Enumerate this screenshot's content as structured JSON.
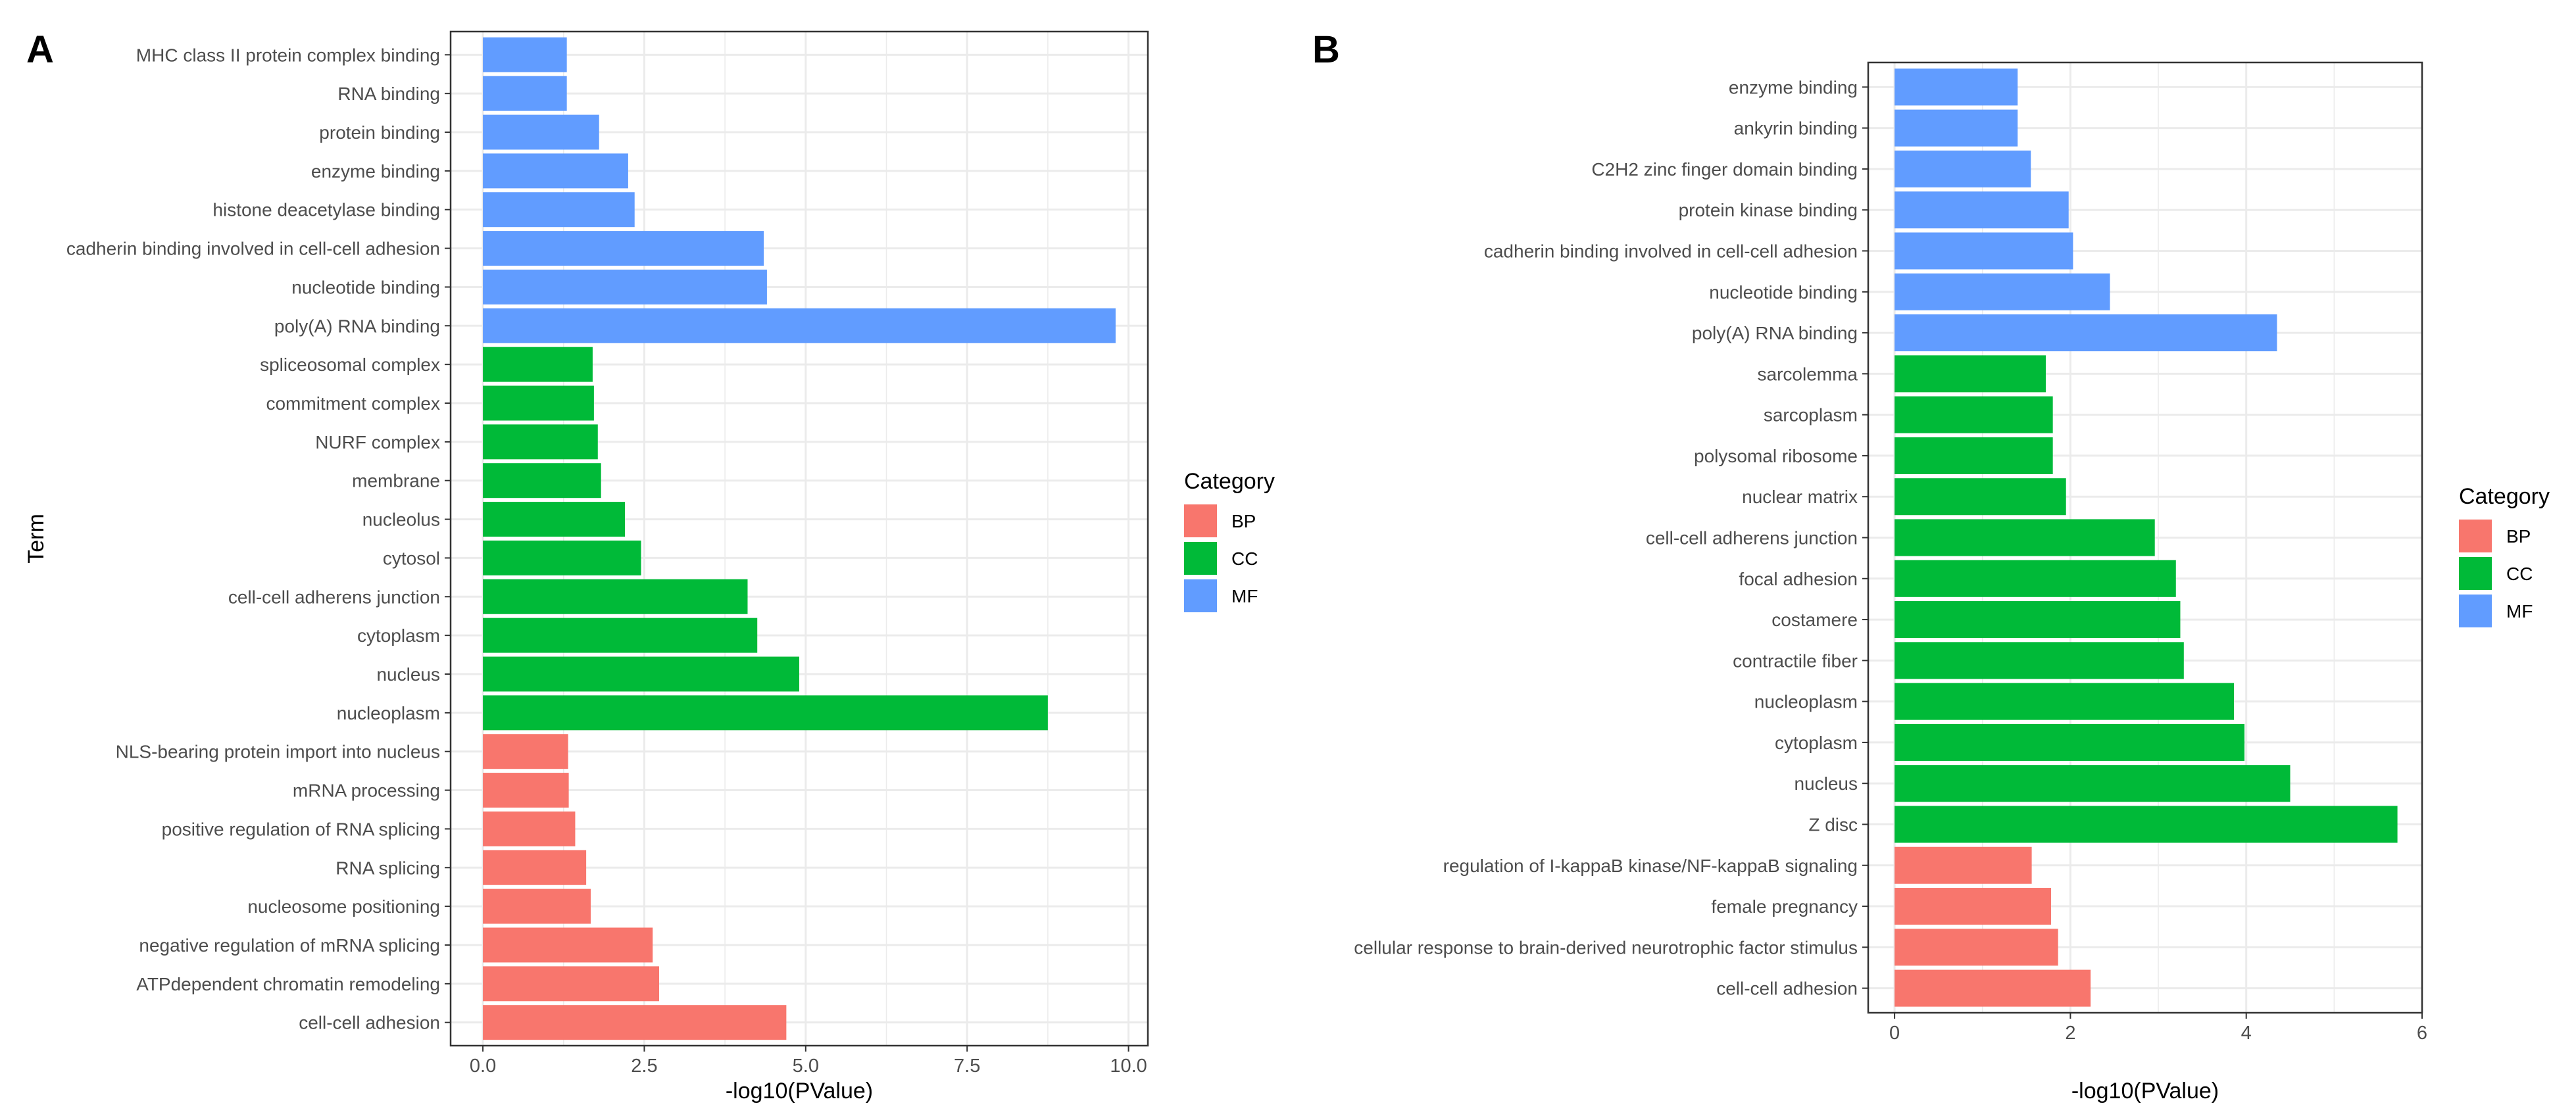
{
  "chart_data": [
    {
      "panel": "A",
      "type": "bar",
      "orientation": "horizontal",
      "xlabel": "-log10(PValue)",
      "ylabel": "Term",
      "xlim": [
        -0.5,
        10.3
      ],
      "xticks": [
        0,
        2.5,
        5,
        7.5,
        10
      ],
      "xtick_labels": [
        "0.0",
        "2.5",
        "5.0",
        "7.5",
        "10.0"
      ],
      "grid": true,
      "legend": {
        "title": "Category",
        "position": "right",
        "entries": [
          "BP",
          "CC",
          "MF"
        ]
      },
      "bars": [
        {
          "term": "MHC class II protein complex binding",
          "value": 1.3,
          "category": "MF"
        },
        {
          "term": "RNA binding",
          "value": 1.3,
          "category": "MF"
        },
        {
          "term": "protein binding",
          "value": 1.8,
          "category": "MF"
        },
        {
          "term": "enzyme binding",
          "value": 2.25,
          "category": "MF"
        },
        {
          "term": "histone deacetylase binding",
          "value": 2.35,
          "category": "MF"
        },
        {
          "term": "cadherin binding involved in cell-cell adhesion",
          "value": 4.35,
          "category": "MF"
        },
        {
          "term": "nucleotide binding",
          "value": 4.4,
          "category": "MF"
        },
        {
          "term": "poly(A) RNA binding",
          "value": 9.8,
          "category": "MF"
        },
        {
          "term": "spliceosomal complex",
          "value": 1.7,
          "category": "CC"
        },
        {
          "term": "commitment complex",
          "value": 1.72,
          "category": "CC"
        },
        {
          "term": "NURF complex",
          "value": 1.78,
          "category": "CC"
        },
        {
          "term": "membrane",
          "value": 1.83,
          "category": "CC"
        },
        {
          "term": "nucleolus",
          "value": 2.2,
          "category": "CC"
        },
        {
          "term": "cytosol",
          "value": 2.45,
          "category": "CC"
        },
        {
          "term": "cell-cell adherens junction",
          "value": 4.1,
          "category": "CC"
        },
        {
          "term": "cytoplasm",
          "value": 4.25,
          "category": "CC"
        },
        {
          "term": "nucleus",
          "value": 4.9,
          "category": "CC"
        },
        {
          "term": "nucleoplasm",
          "value": 8.75,
          "category": "CC"
        },
        {
          "term": "NLS-bearing protein import into nucleus",
          "value": 1.32,
          "category": "BP"
        },
        {
          "term": "mRNA processing",
          "value": 1.33,
          "category": "BP"
        },
        {
          "term": "positive regulation of RNA splicing",
          "value": 1.43,
          "category": "BP"
        },
        {
          "term": "RNA splicing",
          "value": 1.6,
          "category": "BP"
        },
        {
          "term": "nucleosome positioning",
          "value": 1.67,
          "category": "BP"
        },
        {
          "term": "negative regulation of mRNA splicing",
          "value": 2.63,
          "category": "BP"
        },
        {
          "term": "ATPdependent chromatin remodeling",
          "value": 2.73,
          "category": "BP"
        },
        {
          "term": "cell-cell adhesion",
          "value": 4.7,
          "category": "BP"
        }
      ]
    },
    {
      "panel": "B",
      "type": "bar",
      "orientation": "horizontal",
      "xlabel": "-log10(PValue)",
      "ylabel": "",
      "xlim": [
        -0.3,
        6.0
      ],
      "xticks": [
        0,
        2,
        4,
        6
      ],
      "xtick_labels": [
        "0",
        "2",
        "4",
        "6"
      ],
      "grid": true,
      "legend": {
        "title": "Category",
        "position": "right",
        "entries": [
          "BP",
          "CC",
          "MF"
        ]
      },
      "bars": [
        {
          "term": "enzyme binding",
          "value": 1.4,
          "category": "MF"
        },
        {
          "term": "ankyrin binding",
          "value": 1.4,
          "category": "MF"
        },
        {
          "term": "C2H2 zinc finger domain binding",
          "value": 1.55,
          "category": "MF"
        },
        {
          "term": "protein kinase binding",
          "value": 1.98,
          "category": "MF"
        },
        {
          "term": "cadherin binding involved in cell-cell adhesion",
          "value": 2.03,
          "category": "MF"
        },
        {
          "term": "nucleotide binding",
          "value": 2.45,
          "category": "MF"
        },
        {
          "term": "poly(A) RNA binding",
          "value": 4.35,
          "category": "MF"
        },
        {
          "term": "sarcolemma",
          "value": 1.72,
          "category": "CC"
        },
        {
          "term": "sarcoplasm",
          "value": 1.8,
          "category": "CC"
        },
        {
          "term": "polysomal ribosome",
          "value": 1.8,
          "category": "CC"
        },
        {
          "term": "nuclear matrix",
          "value": 1.95,
          "category": "CC"
        },
        {
          "term": "cell-cell adherens junction",
          "value": 2.96,
          "category": "CC"
        },
        {
          "term": "focal adhesion",
          "value": 3.2,
          "category": "CC"
        },
        {
          "term": "costamere",
          "value": 3.25,
          "category": "CC"
        },
        {
          "term": "contractile fiber",
          "value": 3.29,
          "category": "CC"
        },
        {
          "term": "nucleoplasm",
          "value": 3.86,
          "category": "CC"
        },
        {
          "term": "cytoplasm",
          "value": 3.98,
          "category": "CC"
        },
        {
          "term": "nucleus",
          "value": 4.5,
          "category": "CC"
        },
        {
          "term": "Z disc",
          "value": 5.72,
          "category": "CC"
        },
        {
          "term": "regulation of I-kappaB kinase/NF-kappaB signaling",
          "value": 1.56,
          "category": "BP"
        },
        {
          "term": "female pregnancy",
          "value": 1.78,
          "category": "BP"
        },
        {
          "term": "cellular response to brain-derived neurotrophic factor stimulus",
          "value": 1.86,
          "category": "BP"
        },
        {
          "term": "cell-cell adhesion",
          "value": 2.23,
          "category": "BP"
        }
      ]
    }
  ],
  "colors": {
    "BP": "#F8766D",
    "CC": "#00BA38",
    "MF": "#619CFF",
    "grid": "#EBEBEB",
    "panel_border": "#333333"
  }
}
